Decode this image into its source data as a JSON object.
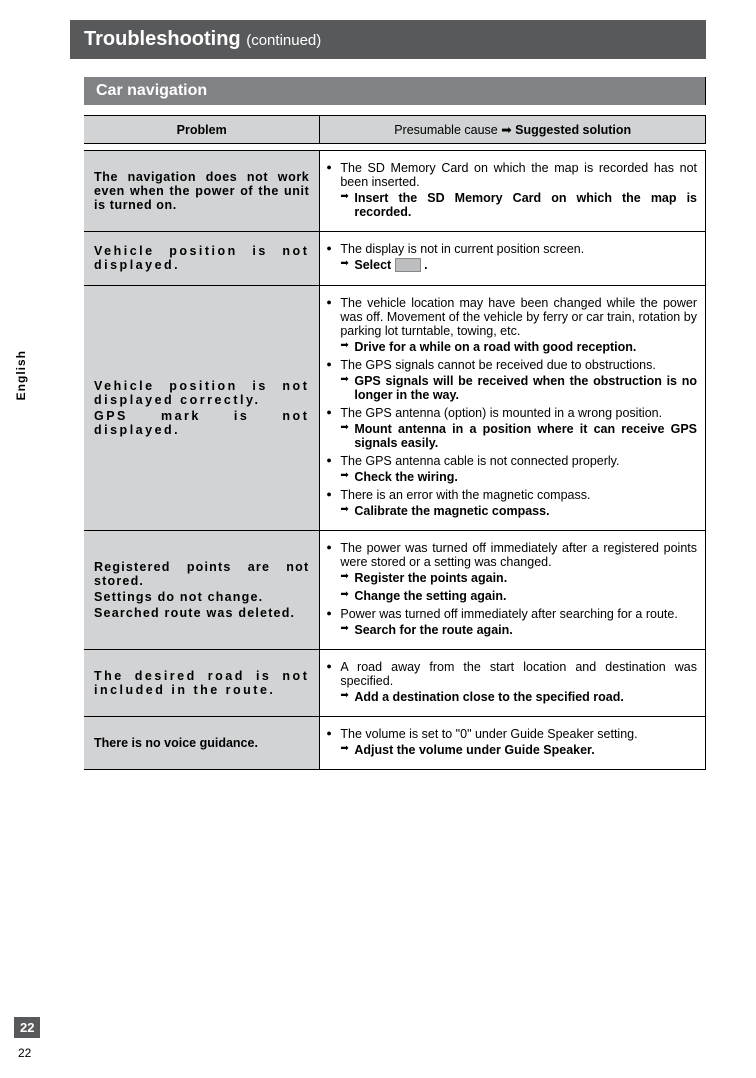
{
  "header": {
    "title": "Troubleshooting",
    "continued": "(continued)"
  },
  "section": "Car navigation",
  "columns": {
    "problem": "Problem",
    "cause_prefix": "Presumable cause ",
    "arrow": "➡",
    "suggested": " Suggested solution"
  },
  "rows": [
    {
      "problem": [
        "The navigation does not work even when the power of the unit is turned on."
      ],
      "items": [
        {
          "cause": "The SD Memory Card on which the map is recorded has not been inserted.",
          "solutions": [
            "Insert the SD Memory Card on which the map is recorded."
          ]
        }
      ]
    },
    {
      "problem": [
        "Vehicle position is not displayed."
      ],
      "items": [
        {
          "cause": "The display is not in current position screen.",
          "solutions": [
            "Select  [ICON] ."
          ]
        }
      ]
    },
    {
      "problem": [
        "Vehicle position is not displayed correctly.",
        "GPS mark is not displayed."
      ],
      "items": [
        {
          "cause": "The vehicle location may have been changed while the power was off. Movement of the vehicle by ferry or car train, rotation by parking lot turntable, towing, etc.",
          "solutions": [
            "Drive for a while on a road with good reception."
          ]
        },
        {
          "cause": "The GPS signals cannot be received due to obstructions.",
          "solutions": [
            "GPS signals will be received when the obstruction is no longer in the way."
          ]
        },
        {
          "cause": "The GPS antenna (option) is mounted in a wrong position.",
          "solutions": [
            "Mount antenna in a position where it can receive GPS signals easily."
          ]
        },
        {
          "cause": "The GPS antenna cable is not connected properly.",
          "solutions": [
            "Check the wiring."
          ]
        },
        {
          "cause": "There is an error with the magnetic compass.",
          "solutions": [
            "Calibrate the magnetic compass."
          ]
        }
      ]
    },
    {
      "problem": [
        "Registered points are not stored.",
        "Settings do not change.",
        "Searched route was deleted."
      ],
      "items": [
        {
          "cause": "The power was turned off immediately after a registered points were stored or a setting was changed.",
          "solutions": [
            "Register the points again.",
            "Change the setting again."
          ]
        },
        {
          "cause": "Power was turned off immediately after searching for a route.",
          "solutions": [
            "Search for the route again."
          ]
        }
      ]
    },
    {
      "problem": [
        "The desired road is not included in the route."
      ],
      "items": [
        {
          "cause": "A road away from the start location and destination was specified.",
          "solutions": [
            "Add a destination close to the specified road."
          ]
        }
      ]
    },
    {
      "problem": [
        "There is no voice guidance."
      ],
      "items": [
        {
          "cause": "The volume is set to \"0\" under Guide Speaker setting.",
          "solutions": [
            "Adjust the volume under Guide Speaker."
          ]
        }
      ]
    }
  ],
  "sideTab": "English",
  "pageNumber": "22",
  "colors": {
    "headerBg": "#58595b",
    "sectionBg": "#808285",
    "cellBg": "#d1d3d4"
  }
}
